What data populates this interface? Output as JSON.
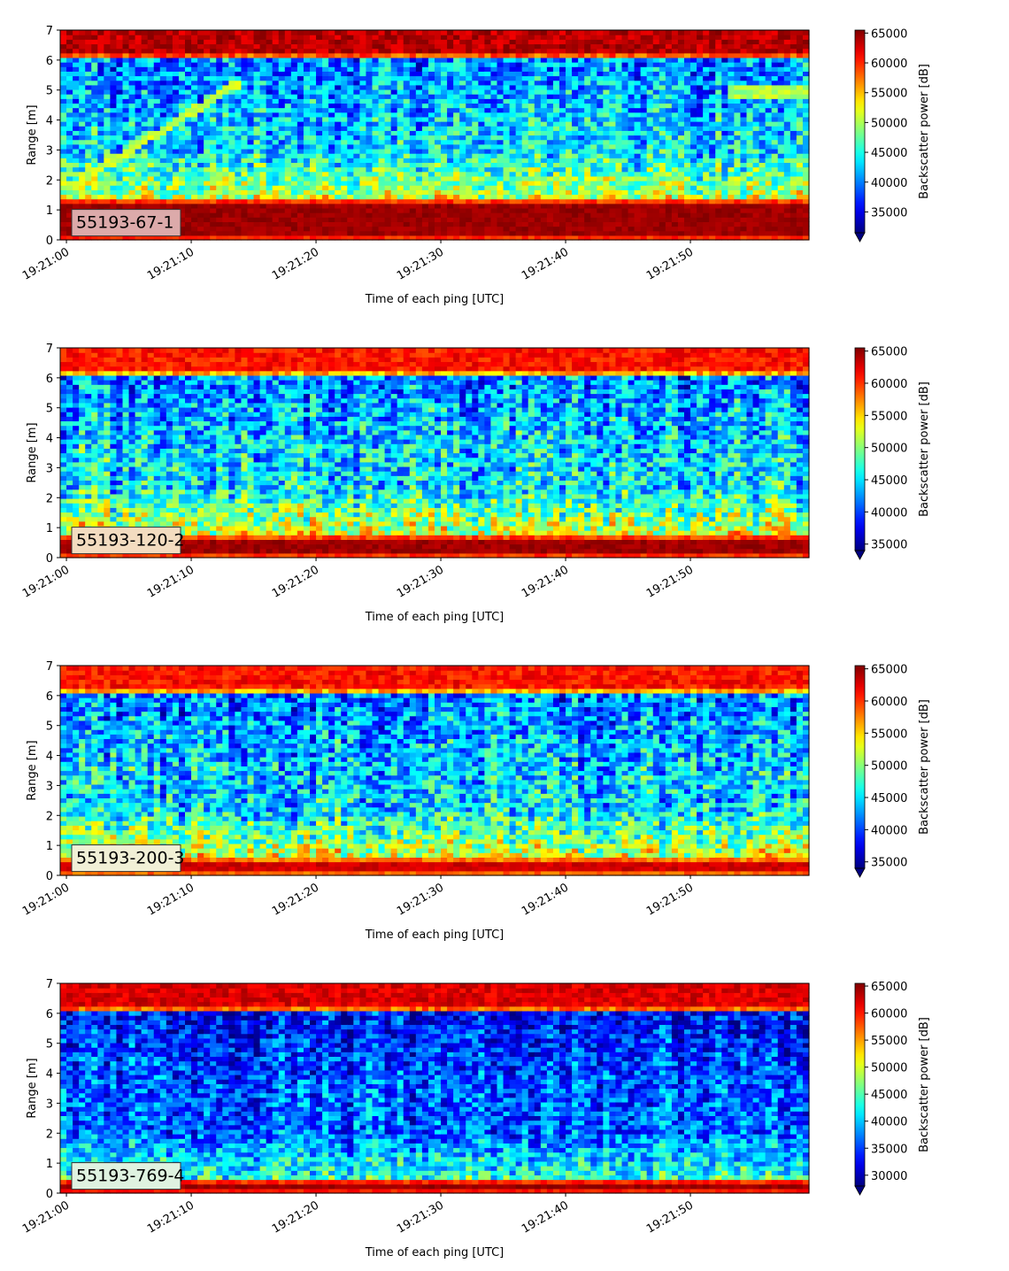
{
  "chart_data": [
    {
      "type": "heatmap",
      "panel_label": "55193-67-1",
      "label_box_color": "#dcaaaa",
      "xlabel": "Time of each ping [UTC]",
      "ylabel": "Range [m]",
      "x_ticks": [
        "19:21:00",
        "19:21:10",
        "19:21:20",
        "19:21:30",
        "19:21:40",
        "19:21:50"
      ],
      "xlim_seconds_after_19_21_00": [
        -0.5,
        59.5
      ],
      "ylim": [
        0,
        7
      ],
      "y_ticks": [
        0,
        1,
        2,
        3,
        4,
        5,
        6,
        7
      ],
      "colorbar_label": "Backscatter power [dB]",
      "colorbar_ticks": [
        35000,
        40000,
        45000,
        50000,
        55000,
        60000,
        65000
      ],
      "colorbar_range": [
        31500,
        65500
      ],
      "colormap": "jet",
      "colorbar_extend": "min",
      "features": {
        "near_field_band_m": [
          0.2,
          1.2
        ],
        "surface_band_m": [
          6.3,
          7.0
        ],
        "background_level": 43000,
        "near_field_level": 65500,
        "surface_level": 65500,
        "diagonal_trace": {
          "from_s": 0,
          "from_m": 1.7,
          "to_s": 14,
          "to_m": 5.3,
          "level": 51000
        },
        "late_band": {
          "from_s": 53,
          "to_s": 59.5,
          "range_m": [
            4.7,
            5.2
          ],
          "level": 50000
        }
      }
    },
    {
      "type": "heatmap",
      "panel_label": "55193-120-2",
      "label_box_color": "#f3dcc0",
      "xlabel": "Time of each ping [UTC]",
      "ylabel": "Range [m]",
      "x_ticks": [
        "19:21:00",
        "19:21:10",
        "19:21:20",
        "19:21:30",
        "19:21:40",
        "19:21:50"
      ],
      "xlim_seconds_after_19_21_00": [
        -0.5,
        59.5
      ],
      "ylim": [
        0,
        7
      ],
      "y_ticks": [
        0,
        1,
        2,
        3,
        4,
        5,
        6,
        7
      ],
      "colorbar_label": "Backscatter power [dB]",
      "colorbar_ticks": [
        35000,
        40000,
        45000,
        50000,
        55000,
        60000,
        65000
      ],
      "colorbar_range": [
        34000,
        65500
      ],
      "colormap": "jet",
      "colorbar_extend": "min",
      "features": {
        "near_field_band_m": [
          0.1,
          0.6
        ],
        "surface_band_m": [
          6.2,
          7.0
        ],
        "background_level": 45000,
        "near_field_level": 65500,
        "surface_level": 63000
      }
    },
    {
      "type": "heatmap",
      "panel_label": "55193-200-3",
      "label_box_color": "#f1f0d6",
      "xlabel": "Time of each ping [UTC]",
      "ylabel": "Range [m]",
      "x_ticks": [
        "19:21:00",
        "19:21:10",
        "19:21:20",
        "19:21:30",
        "19:21:40",
        "19:21:50"
      ],
      "xlim_seconds_after_19_21_00": [
        -0.5,
        59.5
      ],
      "ylim": [
        0,
        7
      ],
      "y_ticks": [
        0,
        1,
        2,
        3,
        4,
        5,
        6,
        7
      ],
      "colorbar_label": "Backscatter power [dB]",
      "colorbar_ticks": [
        35000,
        40000,
        45000,
        50000,
        55000,
        60000,
        65000
      ],
      "colorbar_range": [
        34000,
        65500
      ],
      "colormap": "jet",
      "colorbar_extend": "min",
      "features": {
        "near_field_band_m": [
          0.1,
          0.5
        ],
        "surface_band_m": [
          6.2,
          6.7
        ],
        "background_level": 44500,
        "near_field_level": 64000,
        "surface_level": 63000
      }
    },
    {
      "type": "heatmap",
      "panel_label": "55193-769-4",
      "label_box_color": "#dff2e0",
      "xlabel": "Time of each ping [UTC]",
      "ylabel": "Range [m]",
      "x_ticks": [
        "19:21:00",
        "19:21:10",
        "19:21:20",
        "19:21:30",
        "19:21:40",
        "19:21:50"
      ],
      "xlim_seconds_after_19_21_00": [
        -0.5,
        59.5
      ],
      "ylim": [
        0,
        7
      ],
      "y_ticks": [
        0,
        1,
        2,
        3,
        4,
        5,
        6,
        7
      ],
      "colorbar_label": "Backscatter power [dB]",
      "colorbar_ticks": [
        30000,
        35000,
        40000,
        45000,
        50000,
        55000,
        60000,
        65000
      ],
      "colorbar_range": [
        28000,
        65500
      ],
      "colormap": "jet",
      "colorbar_extend": "min",
      "features": {
        "near_field_band_m": [
          0.15,
          0.3
        ],
        "surface_band_m": [
          6.3,
          6.5
        ],
        "background_level": 36000,
        "near_field_level": 65500,
        "surface_level": 64000
      }
    }
  ]
}
